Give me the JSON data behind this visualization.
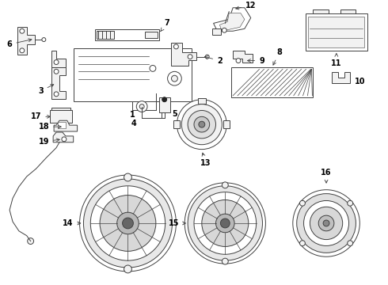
{
  "bg_color": "#ffffff",
  "line_color": "#404040",
  "label_color": "#000000",
  "lw": 0.7,
  "fs": 7.0
}
